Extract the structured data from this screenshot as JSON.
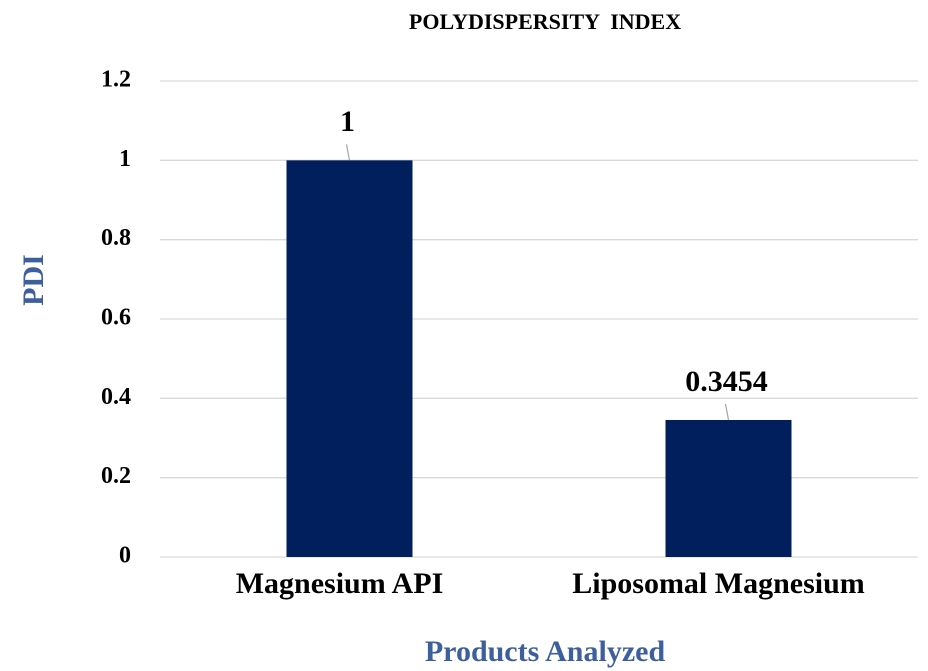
{
  "chart_data": {
    "type": "bar",
    "title": "POLYDISPERSITY  INDEX",
    "x_label": "Products Analyzed",
    "y_label": "PDI",
    "categories": [
      "Magnesium API",
      "Liposomal Magnesium"
    ],
    "values": [
      1,
      0.3454
    ],
    "color": "#001f5c",
    "ylim": [
      0,
      1.2
    ],
    "yticks": [
      0,
      0.2,
      0.4,
      0.6,
      0.8,
      1,
      1.2
    ],
    "grid": true
  }
}
